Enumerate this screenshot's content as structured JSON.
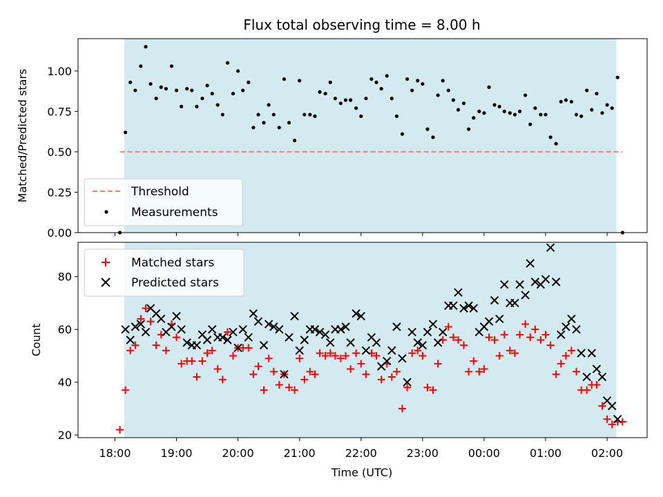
{
  "chart_data": {
    "title": "Flux total observing time = 8.00 h",
    "xlabel": "Time (UTC)",
    "x_tick_labels": [
      "18:00",
      "19:00",
      "20:00",
      "21:00",
      "22:00",
      "23:00",
      "00:00",
      "01:00",
      "02:00"
    ],
    "x_ticks_hours": [
      18,
      19,
      20,
      21,
      22,
      23,
      24,
      25,
      26
    ],
    "x_range_hours": [
      17.4,
      26.65
    ],
    "shaded_window_hours": [
      18.15,
      26.15
    ],
    "shade_color": "#d3ebf0",
    "panels": [
      {
        "type": "scatter",
        "ylabel": "Matched/Predicted stars",
        "ylim": [
          0,
          1.2
        ],
        "y_tick_labels": [
          "0.00",
          "0.25",
          "0.50",
          "0.75",
          "1.00"
        ],
        "y_ticks": [
          0,
          0.25,
          0.5,
          0.75,
          1.0
        ],
        "threshold": {
          "name": "Threshold",
          "value": 0.5,
          "x_range_hours": [
            18.08,
            26.25
          ],
          "color": "#f08080"
        },
        "legend": {
          "location": "lower-left",
          "entries": [
            "Threshold",
            "Measurements"
          ]
        },
        "series": [
          {
            "name": "Measurements",
            "color": "#000000",
            "x_hours": [
              18.08,
              18.17,
              18.25,
              18.33,
              18.42,
              18.5,
              18.58,
              18.67,
              18.75,
              18.83,
              18.92,
              19.0,
              19.08,
              19.17,
              19.25,
              19.33,
              19.42,
              19.5,
              19.58,
              19.67,
              19.75,
              19.83,
              19.92,
              20.0,
              20.08,
              20.17,
              20.25,
              20.33,
              20.42,
              20.5,
              20.58,
              20.67,
              20.75,
              20.83,
              20.92,
              21.0,
              21.08,
              21.17,
              21.25,
              21.33,
              21.42,
              21.5,
              21.58,
              21.67,
              21.75,
              21.83,
              21.92,
              22.0,
              22.08,
              22.17,
              22.25,
              22.33,
              22.42,
              22.5,
              22.58,
              22.67,
              22.75,
              22.83,
              22.92,
              23.0,
              23.08,
              23.17,
              23.25,
              23.33,
              23.42,
              23.5,
              23.58,
              23.67,
              23.75,
              23.83,
              23.92,
              24.0,
              24.08,
              24.17,
              24.25,
              24.33,
              24.42,
              24.5,
              24.58,
              24.67,
              24.75,
              24.83,
              24.92,
              25.0,
              25.08,
              25.17,
              25.25,
              25.33,
              25.42,
              25.5,
              25.58,
              25.67,
              25.75,
              25.83,
              25.92,
              26.0,
              26.08,
              26.17,
              26.25
            ],
            "y": [
              0.0,
              0.62,
              0.93,
              0.88,
              1.03,
              1.15,
              0.92,
              0.83,
              0.9,
              0.89,
              1.03,
              0.88,
              0.78,
              0.89,
              0.88,
              0.78,
              0.83,
              0.91,
              0.86,
              0.79,
              0.73,
              1.05,
              0.86,
              1.0,
              0.88,
              0.93,
              0.65,
              0.73,
              0.68,
              0.79,
              0.73,
              0.65,
              0.95,
              0.68,
              0.57,
              0.94,
              0.73,
              0.73,
              0.72,
              0.87,
              0.86,
              0.93,
              0.83,
              0.8,
              0.82,
              0.82,
              0.77,
              0.72,
              0.83,
              0.95,
              0.93,
              0.89,
              0.97,
              0.83,
              0.72,
              0.61,
              0.95,
              0.88,
              0.94,
              0.92,
              0.64,
              0.59,
              0.85,
              0.94,
              0.88,
              0.82,
              0.76,
              0.8,
              0.64,
              0.71,
              0.75,
              0.74,
              0.9,
              0.79,
              0.78,
              0.75,
              0.74,
              0.73,
              0.75,
              0.85,
              0.67,
              0.77,
              0.73,
              0.73,
              0.59,
              0.55,
              0.81,
              0.82,
              0.81,
              0.73,
              0.72,
              0.88,
              0.76,
              0.86,
              0.74,
              0.79,
              0.77,
              0.96,
              0.0
            ]
          }
        ]
      },
      {
        "type": "scatter",
        "ylabel": "Count",
        "ylim": [
          19,
          93
        ],
        "y_tick_labels": [
          "20",
          "40",
          "60",
          "80"
        ],
        "y_ticks": [
          20,
          40,
          60,
          80
        ],
        "legend": {
          "location": "top-left",
          "entries": [
            "Matched stars",
            "Predicted stars"
          ]
        },
        "series": [
          {
            "name": "Matched stars",
            "marker": "+",
            "color": "#ff0000",
            "x_hours": [
              18.08,
              18.17,
              18.25,
              18.33,
              18.42,
              18.5,
              18.58,
              18.67,
              18.75,
              18.83,
              18.92,
              19.0,
              19.08,
              19.17,
              19.25,
              19.33,
              19.42,
              19.5,
              19.58,
              19.67,
              19.75,
              19.83,
              19.92,
              20.0,
              20.08,
              20.17,
              20.25,
              20.33,
              20.42,
              20.5,
              20.58,
              20.67,
              20.75,
              20.83,
              20.92,
              21.0,
              21.08,
              21.17,
              21.25,
              21.33,
              21.42,
              21.5,
              21.58,
              21.67,
              21.75,
              21.83,
              21.92,
              22.0,
              22.08,
              22.17,
              22.25,
              22.33,
              22.42,
              22.5,
              22.58,
              22.67,
              22.75,
              22.83,
              22.92,
              23.0,
              23.08,
              23.17,
              23.25,
              23.33,
              23.42,
              23.5,
              23.58,
              23.67,
              23.75,
              23.83,
              23.92,
              24.0,
              24.08,
              24.17,
              24.25,
              24.33,
              24.42,
              24.5,
              24.58,
              24.67,
              24.75,
              24.83,
              24.92,
              25.0,
              25.08,
              25.17,
              25.25,
              25.33,
              25.42,
              25.5,
              25.58,
              25.67,
              25.75,
              25.83,
              25.92,
              26.0,
              26.08,
              26.17,
              26.25
            ],
            "y": [
              22,
              37,
              52,
              54,
              64,
              68,
              63,
              54,
              58,
              52,
              62,
              57,
              47,
              48,
              48,
              42,
              48,
              51,
              52,
              45,
              41,
              59,
              50,
              53,
              53,
              53,
              43,
              46,
              37,
              49,
              44,
              39,
              43,
              38,
              37,
              49,
              41,
              44,
              43,
              51,
              50,
              51,
              50,
              49,
              50,
              45,
              51,
              47,
              43,
              51,
              50,
              41,
              47,
              42,
              44,
              30,
              38,
              51,
              52,
              50,
              38,
              37,
              47,
              56,
              61,
              57,
              56,
              54,
              44,
              48,
              44,
              45,
              57,
              56,
              50,
              58,
              52,
              51,
              58,
              62,
              57,
              60,
              56,
              58,
              54,
              43,
              47,
              50,
              52,
              44,
              37,
              37,
              39,
              39,
              31,
              26,
              24,
              25,
              25
            ]
          },
          {
            "name": "Predicted stars",
            "marker": "x",
            "color": "#000000",
            "x_hours": [
              18.17,
              18.25,
              18.33,
              18.42,
              18.5,
              18.58,
              18.67,
              18.75,
              18.83,
              18.92,
              19.0,
              19.08,
              19.17,
              19.25,
              19.33,
              19.42,
              19.5,
              19.58,
              19.67,
              19.75,
              19.83,
              19.92,
              20.0,
              20.08,
              20.17,
              20.25,
              20.33,
              20.42,
              20.5,
              20.58,
              20.67,
              20.75,
              20.83,
              20.92,
              21.0,
              21.08,
              21.17,
              21.25,
              21.33,
              21.42,
              21.5,
              21.58,
              21.67,
              21.75,
              21.83,
              21.92,
              22.0,
              22.08,
              22.17,
              22.25,
              22.33,
              22.42,
              22.5,
              22.58,
              22.67,
              22.75,
              22.83,
              22.92,
              23.0,
              23.08,
              23.17,
              23.25,
              23.33,
              23.42,
              23.5,
              23.58,
              23.67,
              23.75,
              23.83,
              23.92,
              24.0,
              24.08,
              24.17,
              24.25,
              24.33,
              24.42,
              24.5,
              24.58,
              24.67,
              24.75,
              24.83,
              24.92,
              25.0,
              25.08,
              25.17,
              25.25,
              25.33,
              25.42,
              25.5,
              25.58,
              25.67,
              25.75,
              25.83,
              25.92,
              26.0,
              26.08,
              26.17
            ],
            "y": [
              60,
              56,
              61,
              62,
              59,
              68,
              66,
              64,
              59,
              61,
              65,
              60,
              55,
              54,
              54,
              58,
              56,
              60,
              57,
              57,
              56,
              59,
              53,
              60,
              57,
              66,
              63,
              54,
              62,
              61,
              60,
              43,
              57,
              65,
              52,
              56,
              60,
              60,
              59,
              58,
              55,
              60,
              60,
              61,
              55,
              66,
              65,
              52,
              57,
              55,
              46,
              48,
              52,
              61,
              49,
              40,
              59,
              55,
              54,
              59,
              62,
              55,
              59,
              69,
              69,
              74,
              68,
              69,
              68,
              59,
              61,
              63,
              71,
              64,
              77,
              70,
              70,
              77,
              73,
              85,
              78,
              77,
              79,
              91,
              78,
              58,
              61,
              64,
              60,
              51,
              42,
              51,
              45,
              42,
              33,
              31,
              26
            ]
          }
        ]
      }
    ]
  }
}
